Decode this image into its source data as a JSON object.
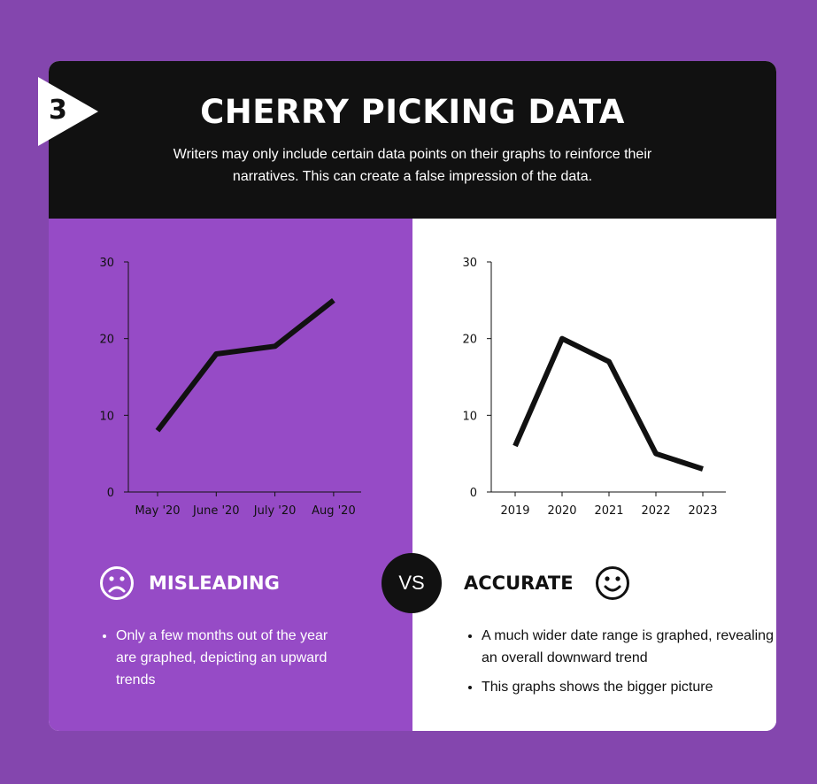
{
  "header": {
    "badge_number": "3",
    "title": "CHERRY PICKING DATA",
    "subtitle": "Writers may only include certain data points on their graphs to reinforce their narratives. This can create a false impression of the data."
  },
  "left": {
    "heading": "MISLEADING",
    "bullets": [
      "Only a few months out of the year are graphed, depicting an upward trends"
    ]
  },
  "right": {
    "heading": "ACCURATE",
    "bullets": [
      "A much wider date range is graphed, revealing an overall downward trend",
      "This graphs shows the bigger picture"
    ]
  },
  "vs_label": "VS",
  "colors": {
    "background": "#8446ae",
    "left_panel": "#964bc6",
    "header": "#111111",
    "line": "#111111"
  },
  "chart_data": [
    {
      "type": "line",
      "categories": [
        "May '20",
        "June '20",
        "July '20",
        "Aug '20"
      ],
      "values": [
        8,
        18,
        19,
        25
      ],
      "yticks": [
        "0",
        "10",
        "20",
        "30"
      ],
      "ylim": [
        0,
        30
      ],
      "grid": false
    },
    {
      "type": "line",
      "categories": [
        "2019",
        "2020",
        "2021",
        "2022",
        "2023"
      ],
      "values": [
        6,
        20,
        17,
        5,
        3
      ],
      "yticks": [
        "0",
        "10",
        "20",
        "30"
      ],
      "ylim": [
        0,
        30
      ],
      "grid": false
    }
  ]
}
